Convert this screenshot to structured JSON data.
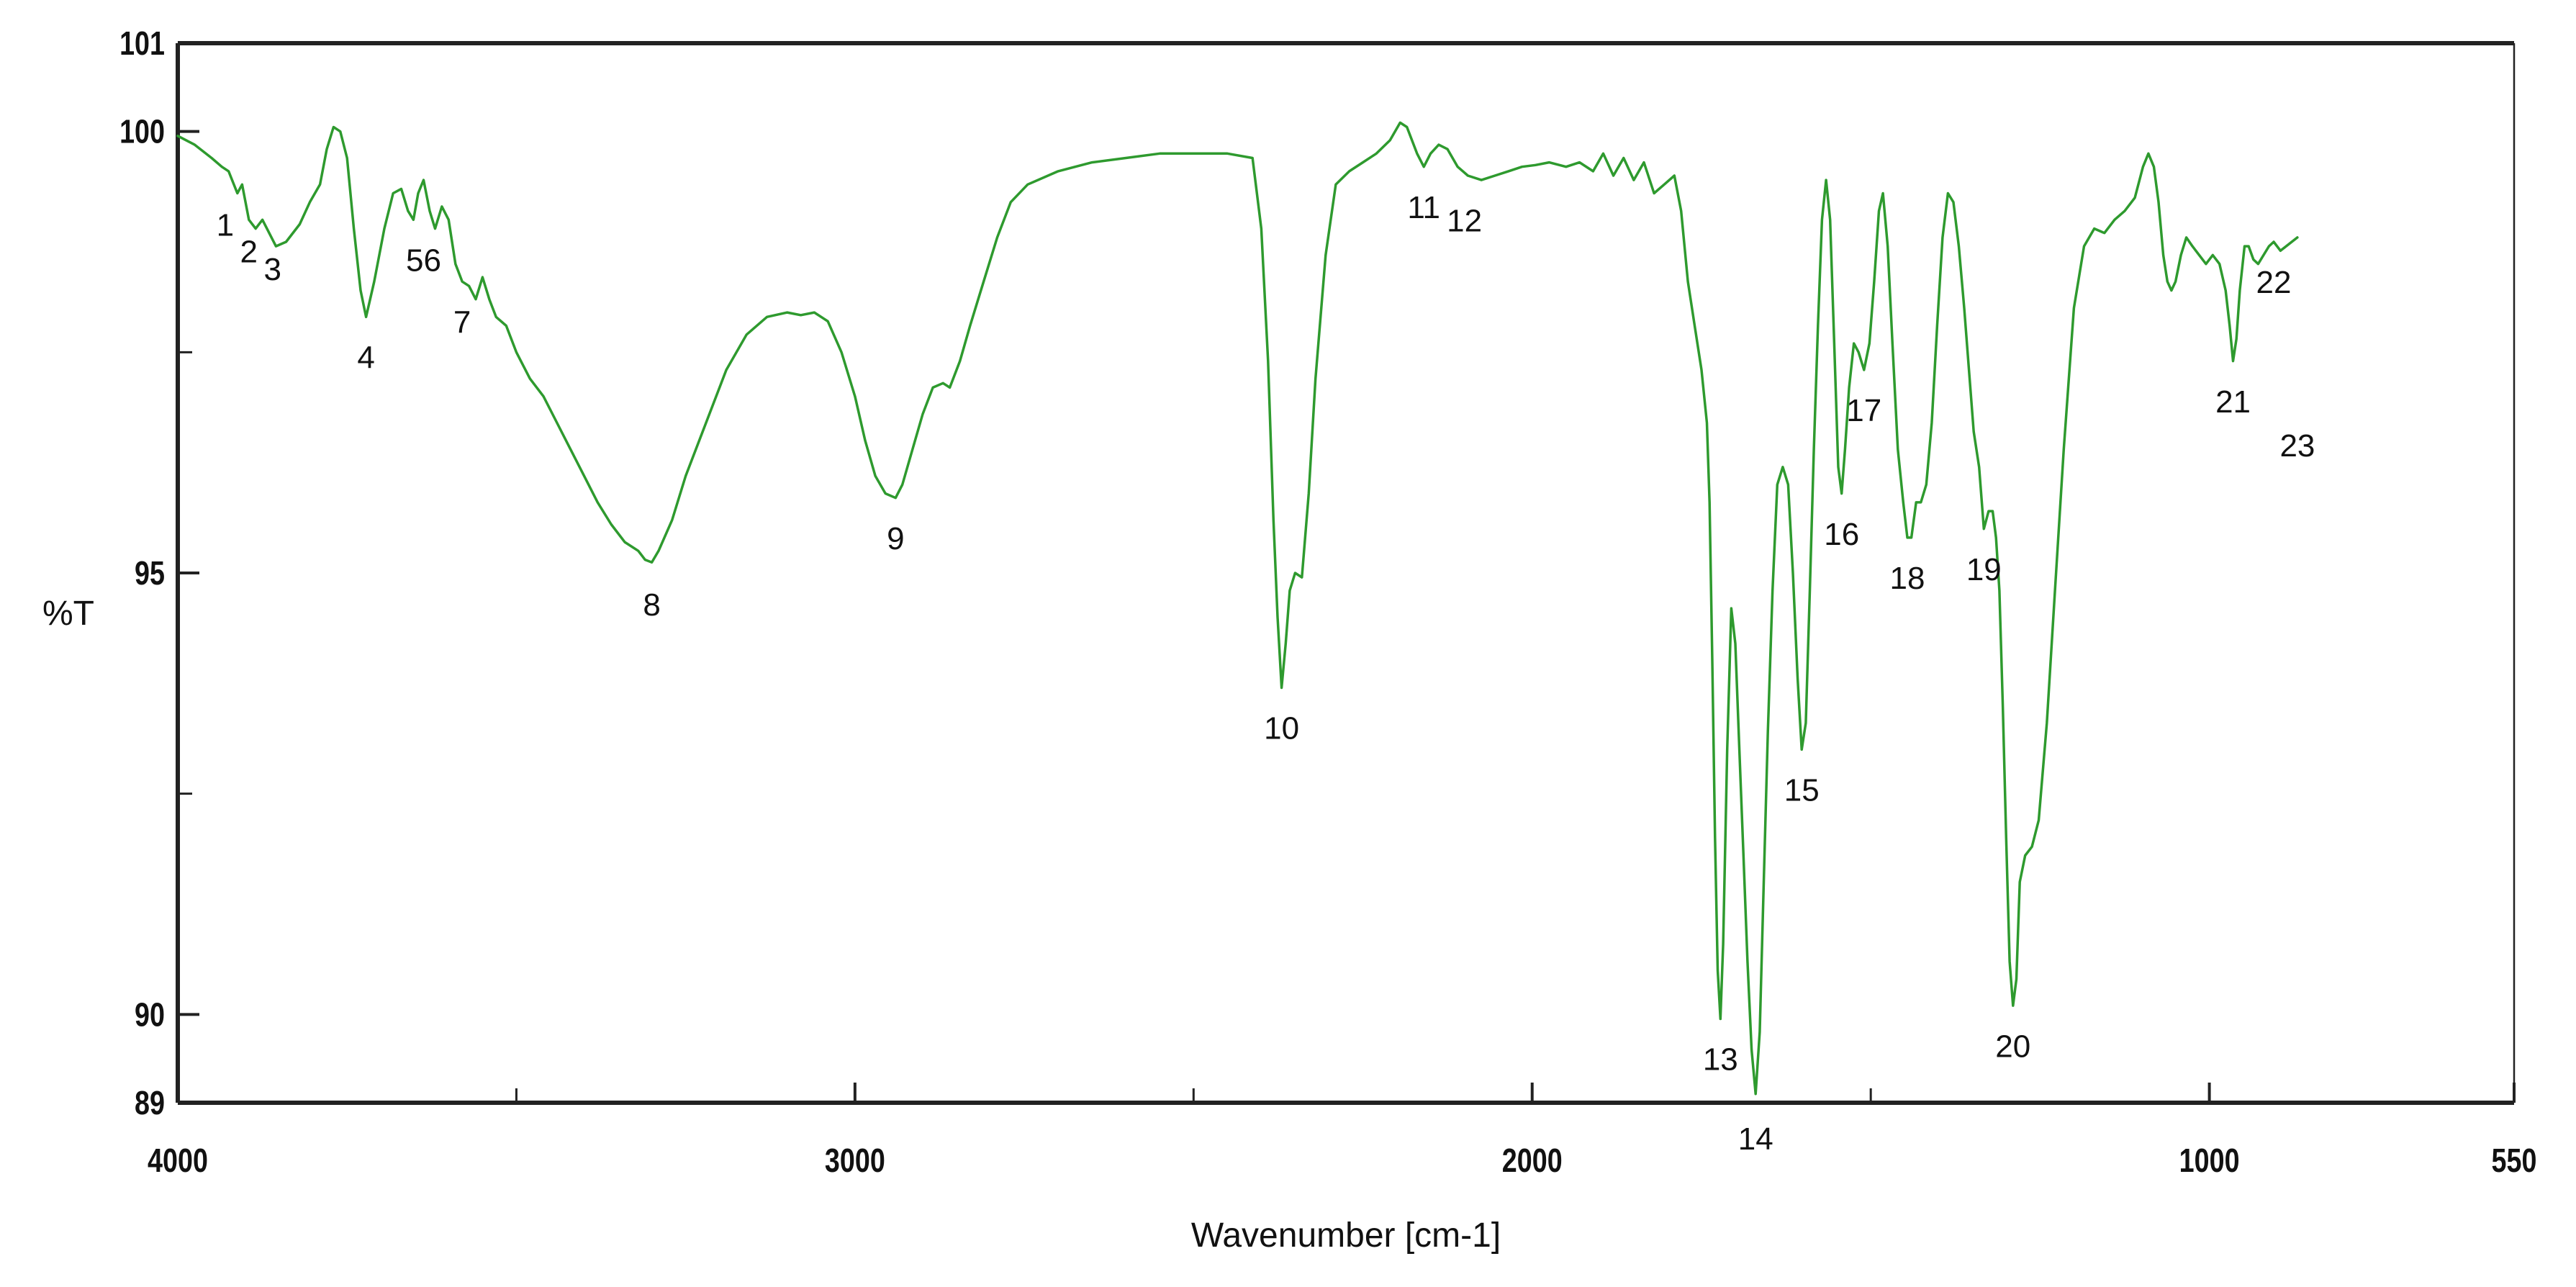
{
  "chart_data": {
    "type": "line",
    "title": "",
    "xlabel": "Wavenumber [cm-1]",
    "ylabel": "%T",
    "xlim": [
      4000,
      550
    ],
    "ylim": [
      89,
      101
    ],
    "x_reversed": true,
    "grid": false,
    "legend": "none",
    "colors": {
      "line": "#2e9a2e",
      "axis": "#222222"
    },
    "x_ticks": [
      {
        "value": 4000,
        "label": "4000"
      },
      {
        "value": 3000,
        "label": "3000"
      },
      {
        "value": 2000,
        "label": "2000"
      },
      {
        "value": 1000,
        "label": "1000"
      },
      {
        "value": 550,
        "label": "550"
      }
    ],
    "x_minor_ticks": [
      3500,
      2500,
      1500
    ],
    "y_ticks": [
      {
        "value": 101,
        "label": "101"
      },
      {
        "value": 100,
        "label": "100"
      },
      {
        "value": 95,
        "label": "95"
      },
      {
        "value": 90,
        "label": "90"
      },
      {
        "value": 89,
        "label": "89"
      }
    ],
    "y_minor_ticks": [
      97.5,
      92.5
    ],
    "series": [
      {
        "points": [
          [
            4000,
            99.95
          ],
          [
            3975,
            99.85
          ],
          [
            3950,
            99.7
          ],
          [
            3935,
            99.6
          ],
          [
            3925,
            99.55
          ],
          [
            3912,
            99.3
          ],
          [
            3905,
            99.4
          ],
          [
            3895,
            99.0
          ],
          [
            3885,
            98.9
          ],
          [
            3875,
            99.0
          ],
          [
            3865,
            98.85
          ],
          [
            3855,
            98.7
          ],
          [
            3840,
            98.75
          ],
          [
            3820,
            98.95
          ],
          [
            3805,
            99.2
          ],
          [
            3790,
            99.4
          ],
          [
            3780,
            99.8
          ],
          [
            3770,
            100.05
          ],
          [
            3760,
            100.0
          ],
          [
            3750,
            99.7
          ],
          [
            3740,
            98.9
          ],
          [
            3730,
            98.2
          ],
          [
            3722,
            97.9
          ],
          [
            3710,
            98.3
          ],
          [
            3695,
            98.9
          ],
          [
            3682,
            99.3
          ],
          [
            3670,
            99.35
          ],
          [
            3660,
            99.1
          ],
          [
            3652,
            99.0
          ],
          [
            3645,
            99.3
          ],
          [
            3637,
            99.45
          ],
          [
            3628,
            99.1
          ],
          [
            3620,
            98.9
          ],
          [
            3610,
            99.15
          ],
          [
            3600,
            99.0
          ],
          [
            3590,
            98.5
          ],
          [
            3580,
            98.3
          ],
          [
            3570,
            98.25
          ],
          [
            3560,
            98.1
          ],
          [
            3550,
            98.35
          ],
          [
            3540,
            98.1
          ],
          [
            3530,
            97.9
          ],
          [
            3515,
            97.8
          ],
          [
            3500,
            97.5
          ],
          [
            3480,
            97.2
          ],
          [
            3460,
            97.0
          ],
          [
            3440,
            96.7
          ],
          [
            3420,
            96.4
          ],
          [
            3400,
            96.1
          ],
          [
            3380,
            95.8
          ],
          [
            3360,
            95.55
          ],
          [
            3340,
            95.35
          ],
          [
            3320,
            95.25
          ],
          [
            3310,
            95.15
          ],
          [
            3300,
            95.12
          ],
          [
            3290,
            95.25
          ],
          [
            3270,
            95.6
          ],
          [
            3250,
            96.1
          ],
          [
            3220,
            96.7
          ],
          [
            3190,
            97.3
          ],
          [
            3160,
            97.7
          ],
          [
            3130,
            97.9
          ],
          [
            3100,
            97.95
          ],
          [
            3080,
            97.92
          ],
          [
            3060,
            97.95
          ],
          [
            3040,
            97.85
          ],
          [
            3020,
            97.5
          ],
          [
            3000,
            97.0
          ],
          [
            2985,
            96.5
          ],
          [
            2970,
            96.1
          ],
          [
            2955,
            95.9
          ],
          [
            2940,
            95.85
          ],
          [
            2930,
            96.0
          ],
          [
            2915,
            96.4
          ],
          [
            2900,
            96.8
          ],
          [
            2885,
            97.1
          ],
          [
            2870,
            97.15
          ],
          [
            2860,
            97.1
          ],
          [
            2845,
            97.4
          ],
          [
            2830,
            97.8
          ],
          [
            2810,
            98.3
          ],
          [
            2790,
            98.8
          ],
          [
            2770,
            99.2
          ],
          [
            2745,
            99.4
          ],
          [
            2700,
            99.55
          ],
          [
            2650,
            99.65
          ],
          [
            2600,
            99.7
          ],
          [
            2550,
            99.75
          ],
          [
            2500,
            99.75
          ],
          [
            2450,
            99.75
          ],
          [
            2413,
            99.7
          ],
          [
            2400,
            98.9
          ],
          [
            2390,
            97.4
          ],
          [
            2382,
            95.6
          ],
          [
            2376,
            94.5
          ],
          [
            2370,
            93.7
          ],
          [
            2364,
            94.2
          ],
          [
            2358,
            94.8
          ],
          [
            2350,
            95.0
          ],
          [
            2340,
            94.95
          ],
          [
            2330,
            95.9
          ],
          [
            2320,
            97.2
          ],
          [
            2305,
            98.6
          ],
          [
            2290,
            99.4
          ],
          [
            2270,
            99.55
          ],
          [
            2250,
            99.65
          ],
          [
            2230,
            99.75
          ],
          [
            2210,
            99.9
          ],
          [
            2195,
            100.1
          ],
          [
            2185,
            100.05
          ],
          [
            2170,
            99.75
          ],
          [
            2160,
            99.6
          ],
          [
            2150,
            99.75
          ],
          [
            2138,
            99.85
          ],
          [
            2125,
            99.8
          ],
          [
            2110,
            99.6
          ],
          [
            2095,
            99.5
          ],
          [
            2075,
            99.45
          ],
          [
            2055,
            99.5
          ],
          [
            2035,
            99.55
          ],
          [
            2015,
            99.6
          ],
          [
            1995,
            99.62
          ],
          [
            1975,
            99.65
          ],
          [
            1950,
            99.6
          ],
          [
            1930,
            99.65
          ],
          [
            1910,
            99.55
          ],
          [
            1895,
            99.75
          ],
          [
            1880,
            99.5
          ],
          [
            1865,
            99.7
          ],
          [
            1850,
            99.45
          ],
          [
            1835,
            99.65
          ],
          [
            1820,
            99.3
          ],
          [
            1805,
            99.4
          ],
          [
            1790,
            99.5
          ],
          [
            1780,
            99.1
          ],
          [
            1770,
            98.3
          ],
          [
            1760,
            97.8
          ],
          [
            1750,
            97.3
          ],
          [
            1742,
            96.7
          ],
          [
            1738,
            95.8
          ],
          [
            1734,
            94.0
          ],
          [
            1730,
            92.0
          ],
          [
            1726,
            90.5
          ],
          [
            1722,
            89.95
          ],
          [
            1718,
            90.8
          ],
          [
            1712,
            93.0
          ],
          [
            1706,
            94.6
          ],
          [
            1700,
            94.2
          ],
          [
            1694,
            93.0
          ],
          [
            1688,
            91.8
          ],
          [
            1682,
            90.6
          ],
          [
            1676,
            89.6
          ],
          [
            1670,
            89.1
          ],
          [
            1664,
            89.8
          ],
          [
            1658,
            91.5
          ],
          [
            1652,
            93.2
          ],
          [
            1645,
            94.8
          ],
          [
            1638,
            96.0
          ],
          [
            1630,
            96.2
          ],
          [
            1622,
            96.0
          ],
          [
            1615,
            95.0
          ],
          [
            1608,
            93.8
          ],
          [
            1602,
            93.0
          ],
          [
            1596,
            93.3
          ],
          [
            1590,
            94.8
          ],
          [
            1584,
            96.4
          ],
          [
            1578,
            97.8
          ],
          [
            1572,
            99.0
          ],
          [
            1566,
            99.45
          ],
          [
            1560,
            99.0
          ],
          [
            1554,
            97.6
          ],
          [
            1548,
            96.2
          ],
          [
            1543,
            95.9
          ],
          [
            1538,
            96.4
          ],
          [
            1532,
            97.1
          ],
          [
            1525,
            97.6
          ],
          [
            1518,
            97.5
          ],
          [
            1510,
            97.3
          ],
          [
            1502,
            97.6
          ],
          [
            1495,
            98.3
          ],
          [
            1488,
            99.1
          ],
          [
            1482,
            99.3
          ],
          [
            1475,
            98.7
          ],
          [
            1468,
            97.6
          ],
          [
            1460,
            96.4
          ],
          [
            1452,
            95.8
          ],
          [
            1446,
            95.4
          ],
          [
            1440,
            95.4
          ],
          [
            1433,
            95.8
          ],
          [
            1426,
            95.8
          ],
          [
            1418,
            96.0
          ],
          [
            1410,
            96.7
          ],
          [
            1402,
            97.8
          ],
          [
            1394,
            98.8
          ],
          [
            1386,
            99.3
          ],
          [
            1378,
            99.2
          ],
          [
            1370,
            98.7
          ],
          [
            1362,
            98.0
          ],
          [
            1355,
            97.3
          ],
          [
            1348,
            96.6
          ],
          [
            1340,
            96.2
          ],
          [
            1333,
            95.5
          ],
          [
            1326,
            95.7
          ],
          [
            1320,
            95.7
          ],
          [
            1315,
            95.4
          ],
          [
            1310,
            94.8
          ],
          [
            1305,
            93.5
          ],
          [
            1300,
            92.0
          ],
          [
            1295,
            90.6
          ],
          [
            1290,
            90.1
          ],
          [
            1285,
            90.4
          ],
          [
            1280,
            91.5
          ],
          [
            1272,
            91.8
          ],
          [
            1262,
            91.9
          ],
          [
            1252,
            92.2
          ],
          [
            1240,
            93.3
          ],
          [
            1228,
            94.8
          ],
          [
            1215,
            96.4
          ],
          [
            1200,
            98.0
          ],
          [
            1185,
            98.7
          ],
          [
            1170,
            98.9
          ],
          [
            1155,
            98.85
          ],
          [
            1140,
            99.0
          ],
          [
            1125,
            99.1
          ],
          [
            1110,
            99.25
          ],
          [
            1098,
            99.6
          ],
          [
            1090,
            99.75
          ],
          [
            1082,
            99.6
          ],
          [
            1075,
            99.2
          ],
          [
            1068,
            98.6
          ],
          [
            1062,
            98.3
          ],
          [
            1056,
            98.2
          ],
          [
            1050,
            98.3
          ],
          [
            1042,
            98.6
          ],
          [
            1034,
            98.8
          ],
          [
            1025,
            98.7
          ],
          [
            1015,
            98.6
          ],
          [
            1005,
            98.5
          ],
          [
            995,
            98.6
          ],
          [
            985,
            98.5
          ],
          [
            976,
            98.2
          ],
          [
            970,
            97.8
          ],
          [
            965,
            97.4
          ],
          [
            960,
            97.65
          ],
          [
            955,
            98.2
          ],
          [
            948,
            98.7
          ],
          [
            942,
            98.7
          ],
          [
            935,
            98.55
          ],
          [
            928,
            98.5
          ],
          [
            920,
            98.6
          ],
          [
            912,
            98.7
          ],
          [
            905,
            98.75
          ],
          [
            895,
            98.65
          ],
          [
            870,
            98.8
          ]
        ]
      }
    ],
    "annotations": [
      {
        "label": "1",
        "x": 3930,
        "y": 98.95
      },
      {
        "label": "2",
        "x": 3895,
        "y": 98.65
      },
      {
        "label": "3",
        "x": 3860,
        "y": 98.45
      },
      {
        "label": "4",
        "x": 3722,
        "y": 97.45
      },
      {
        "label": "56",
        "x": 3637,
        "y": 98.55
      },
      {
        "label": "7",
        "x": 3580,
        "y": 97.85
      },
      {
        "label": "8",
        "x": 3300,
        "y": 94.65
      },
      {
        "label": "9",
        "x": 2940,
        "y": 95.4
      },
      {
        "label": "10",
        "x": 2370,
        "y": 93.25
      },
      {
        "label": "11",
        "x": 2160,
        "y": 99.15
      },
      {
        "label": "12",
        "x": 2100,
        "y": 99.0
      },
      {
        "label": "13",
        "x": 1722,
        "y": 89.5
      },
      {
        "label": "14",
        "x": 1670,
        "y": 88.6
      },
      {
        "label": "15",
        "x": 1602,
        "y": 92.55
      },
      {
        "label": "16",
        "x": 1543,
        "y": 95.45
      },
      {
        "label": "17",
        "x": 1510,
        "y": 96.85
      },
      {
        "label": "18",
        "x": 1446,
        "y": 94.95
      },
      {
        "label": "19",
        "x": 1333,
        "y": 95.05
      },
      {
        "label": "20",
        "x": 1290,
        "y": 89.65
      },
      {
        "label": "21",
        "x": 965,
        "y": 96.95
      },
      {
        "label": "22",
        "x": 905,
        "y": 98.3
      },
      {
        "label": "23",
        "x": 870,
        "y": 96.45
      }
    ]
  }
}
